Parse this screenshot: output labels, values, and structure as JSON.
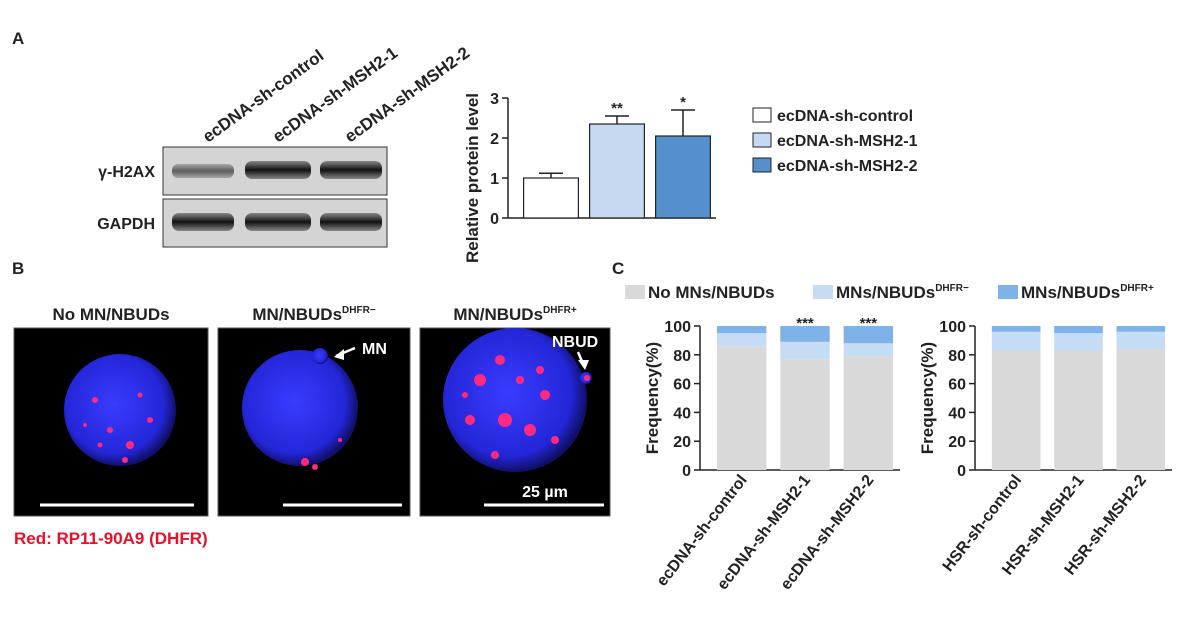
{
  "panel_labels": [
    "A",
    "B",
    "C"
  ],
  "blot": {
    "lanes": [
      "ecDNA-sh-control",
      "ecDNA-sh-MSH2-1",
      "ecDNA-sh-MSH2-2"
    ],
    "rows": [
      "γ-H2AX",
      "GAPDH"
    ]
  },
  "microscopy": {
    "titles": [
      {
        "text": "No MN/NBUDs"
      },
      {
        "text": "MN/NBUDs",
        "superscript": "DHFR−"
      },
      {
        "text": "MN/NBUDs",
        "superscript": "DHFR+"
      }
    ],
    "annotations": [
      "MN",
      "NBUD"
    ],
    "scale_bar": "25 µm",
    "caption": "Red: RP11-90A9 (DHFR)"
  },
  "chart_data": [
    {
      "type": "bar",
      "ylabel": "Relative protein level",
      "categories": [
        "ecDNA-sh-control",
        "ecDNA-sh-MSH2-1",
        "ecDNA-sh-MSH2-2"
      ],
      "values": [
        1.0,
        2.35,
        2.05
      ],
      "errors": [
        0.12,
        0.2,
        0.65
      ],
      "colors": [
        "#ffffff",
        "#c6d9f1",
        "#5590cc"
      ],
      "significance": [
        null,
        "**",
        "*"
      ],
      "ylim": [
        0,
        3
      ],
      "yticks": [
        0,
        1,
        2,
        3
      ]
    },
    {
      "type": "stacked_bar",
      "ylabel": "Frequency(%)",
      "categories": [
        "ecDNA-sh-control",
        "ecDNA-sh-MSH2-1",
        "ecDNA-sh-MSH2-2"
      ],
      "series": [
        {
          "name": "No MNs/NBUDs",
          "color": "#d9d9d9",
          "values": [
            86,
            77,
            79
          ]
        },
        {
          "name": "MNs/NBUDs",
          "superscript": "DHFR−",
          "color": "#c5dcf5",
          "values": [
            9,
            12,
            9
          ]
        },
        {
          "name": "MNs/NBUDs",
          "superscript": "DHFR+",
          "color": "#7fb2e8",
          "values": [
            5,
            11,
            12
          ]
        }
      ],
      "significance": [
        null,
        "***",
        "***"
      ],
      "ylim": [
        0,
        100
      ],
      "yticks": [
        0,
        20,
        40,
        60,
        80,
        100
      ]
    },
    {
      "type": "stacked_bar",
      "ylabel": "Frequency(%)",
      "categories": [
        "HSR-sh-control",
        "HSR-sh-MSH2-1",
        "HSR-sh-MSH2-2"
      ],
      "series": [
        {
          "color": "#d9d9d9",
          "values": [
            83,
            83,
            84
          ]
        },
        {
          "color": "#c5dcf5",
          "values": [
            13,
            12,
            12
          ]
        },
        {
          "color": "#7fb2e8",
          "values": [
            4,
            5,
            4
          ]
        }
      ],
      "ylim": [
        0,
        100
      ],
      "yticks": [
        0,
        20,
        40,
        60,
        80,
        100
      ]
    }
  ]
}
